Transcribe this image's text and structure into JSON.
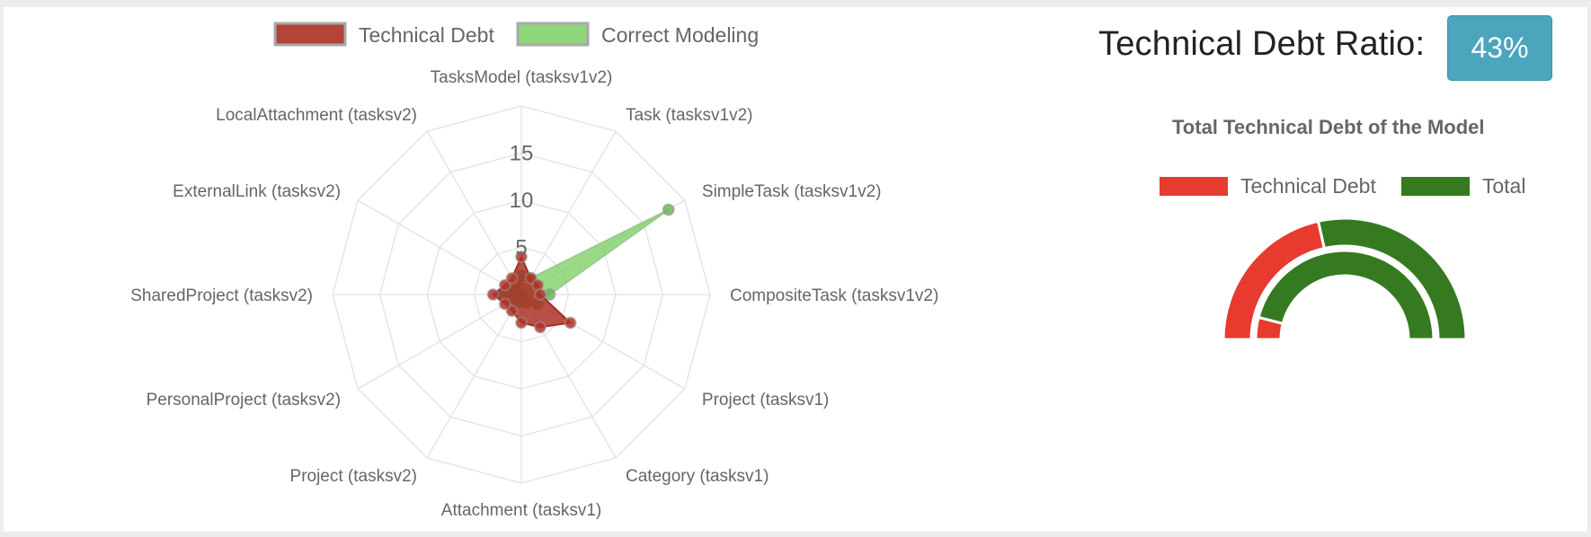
{
  "radar": {
    "legend": [
      {
        "label": "Technical Debt",
        "fill": "#b24438",
        "stroke": "#a9a9a9"
      },
      {
        "label": "Correct Modeling",
        "fill": "#8fd57a",
        "stroke": "#a9a9a9"
      }
    ],
    "chart_data": {
      "type": "radar",
      "categories": [
        "TasksModel (tasksv1v2)",
        "Task (tasksv1v2)",
        "SimpleTask (tasksv1v2)",
        "CompositeTask (tasksv1v2)",
        "Project (tasksv1)",
        "Category (tasksv1)",
        "Attachment (tasksv1)",
        "Project (tasksv2)",
        "PersonalProject (tasksv2)",
        "SharedProject (tasksv2)",
        "ExternalLink (tasksv2)",
        "LocalAttachment (tasksv2)"
      ],
      "series": [
        {
          "name": "Technical Debt",
          "values": [
            4,
            2,
            2,
            2,
            6,
            4,
            3,
            2,
            2,
            3,
            2,
            2
          ]
        },
        {
          "name": "Correct Modeling",
          "values": [
            2,
            2,
            18,
            3,
            2,
            1,
            0,
            1,
            1,
            2,
            1,
            1
          ]
        }
      ],
      "rmin": 0,
      "rmax": 20,
      "ticks": [
        "5",
        "10",
        "15"
      ]
    }
  },
  "ratio": {
    "label": "Technical Debt Ratio:",
    "value": "43%"
  },
  "gauge": {
    "title": "Total Technical Debt of the Model",
    "legend": [
      {
        "label": "Technical Debt",
        "color": "#e63b2e"
      },
      {
        "label": "Total",
        "color": "#357a20"
      }
    ],
    "chart_data": {
      "type": "doughnut-half",
      "rings": [
        {
          "name": "outer",
          "values": [
            {
              "label": "Technical Debt",
              "value": 43
            },
            {
              "label": "Total",
              "value": 57
            }
          ]
        },
        {
          "name": "inner",
          "values": [
            {
              "label": "Technical Debt",
              "value": 8
            },
            {
              "label": "Total",
              "value": 92
            }
          ]
        }
      ]
    }
  }
}
